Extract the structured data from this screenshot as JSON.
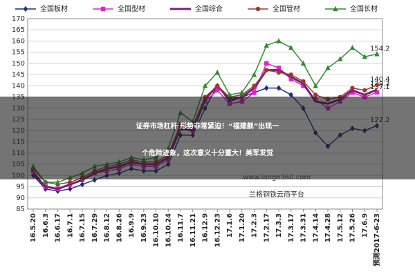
{
  "chart_data": {
    "type": "line",
    "categories": [
      "16.5.20",
      "16.6.3",
      "16.6.17",
      "16.7.1",
      "16.7.15",
      "16.7.29",
      "16.8.12",
      "16.8.26",
      "16.9.9",
      "16.9.23",
      "16.10.10",
      "16.10.24",
      "16.11.7",
      "16.11.21",
      "16.12.9",
      "16.12.23",
      "17.1.6",
      "17.1.20",
      "17.2.3",
      "17.2.17",
      "17.3.3",
      "17.3.17",
      "17.3.31",
      "17.4.14",
      "17.4.28",
      "17.5.12",
      "17.5.26",
      "17.6.9",
      "预测2017-6-23"
    ],
    "series": [
      {
        "name": "全国板材",
        "color": "#1f2d7a",
        "marker": "diamond",
        "values": [
          100,
          94,
          93,
          94,
          96,
          98,
          100,
          101,
          103,
          102,
          102,
          105,
          118,
          118,
          130,
          140,
          133,
          135,
          137,
          139,
          139,
          136,
          130,
          119,
          113,
          118,
          121,
          120,
          122.2
        ]
      },
      {
        "name": "全国型材",
        "color": "#e61ecf",
        "marker": "square",
        "values": [
          102,
          95,
          94,
          96,
          98,
          101,
          102,
          103,
          105,
          104,
          104,
          107,
          121,
          120,
          133,
          138,
          132,
          133,
          137,
          150,
          148,
          143,
          140,
          134,
          130,
          133,
          137,
          135,
          137.1
        ]
      },
      {
        "name": "全国综合",
        "color": "#7a1f7a",
        "marker": "none",
        "values": [
          101,
          95,
          94,
          96,
          98,
          101,
          103,
          104,
          106,
          105,
          105,
          108,
          121,
          120,
          134,
          140,
          134,
          135,
          139,
          147,
          147,
          144,
          141,
          133,
          132,
          134,
          138,
          136,
          138.3
        ]
      },
      {
        "name": "全国管材",
        "color": "#a0382a",
        "marker": "circle",
        "values": [
          103,
          97,
          96,
          97,
          99,
          102,
          104,
          105,
          107,
          106,
          106,
          109,
          123,
          122,
          135,
          140,
          135,
          136,
          140,
          147,
          146,
          145,
          142,
          136,
          134,
          135,
          139,
          138,
          140.4
        ]
      },
      {
        "name": "全国长材",
        "color": "#2e8b2e",
        "marker": "triangle",
        "values": [
          104,
          97,
          97,
          99,
          101,
          104,
          105,
          106,
          108,
          107,
          108,
          112,
          128,
          124,
          140,
          146,
          136,
          137,
          145,
          158,
          160,
          157,
          150,
          140,
          148,
          152,
          157,
          153,
          154.2
        ]
      }
    ],
    "ylim": [
      85,
      170
    ],
    "yticks": [
      85,
      90,
      95,
      100,
      105,
      110,
      115,
      120,
      125,
      130,
      135,
      140,
      145,
      150,
      155,
      160,
      165,
      170
    ],
    "grid": true,
    "data_labels": "last"
  },
  "overlay": {
    "headline": [
      "证券市场杠杆 形势非常紧迫！“福建舰”出现一",
      "个危险迹象，这次意义十分重大！美军发觉"
    ],
    "watermark": [
      "www.lange360.com",
      "兰格钢铁云商平台"
    ]
  }
}
